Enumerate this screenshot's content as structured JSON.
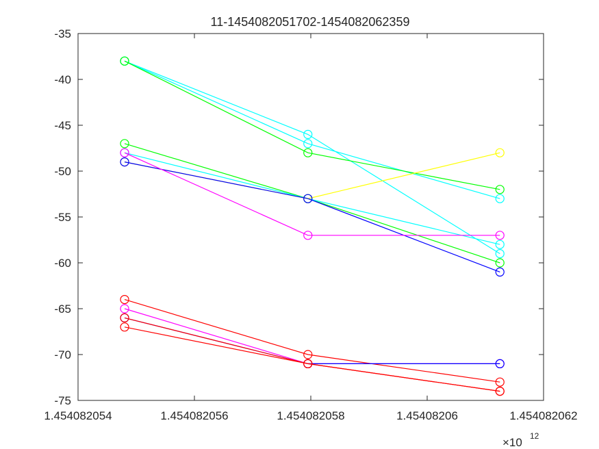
{
  "chart_data": {
    "type": "line",
    "title": "11-1454082051702-1454082062359",
    "xlabel": "",
    "ylabel": "",
    "x_exponent_label": "×10",
    "x_exponent_power": "12",
    "xlim": [
      1454082054000,
      1454082062000
    ],
    "ylim": [
      -75,
      -35
    ],
    "x_ticks": [
      1454082054000,
      1454082056000,
      1454082058000,
      1454082060000,
      1454082062000
    ],
    "x_tick_labels": [
      "1.454082054",
      "1.454082056",
      "1.454082058",
      "1.45408206",
      "1.454082062"
    ],
    "y_ticks": [
      -35,
      -40,
      -45,
      -50,
      -55,
      -60,
      -65,
      -70,
      -75
    ],
    "y_tick_labels": [
      "-35",
      "-40",
      "-45",
      "-50",
      "-55",
      "-60",
      "-65",
      "-70",
      "-75"
    ],
    "marker": "circle",
    "grid": false,
    "x": [
      1454082054800,
      1454082057950,
      1454082061250
    ],
    "series": [
      {
        "color": "#00ffff",
        "values": [
          -38,
          -46,
          -59
        ]
      },
      {
        "color": "#00ffff",
        "values": [
          -38,
          -47,
          -53
        ]
      },
      {
        "color": "#00ff00",
        "values": [
          -38,
          -48,
          -52
        ]
      },
      {
        "color": "#00ff00",
        "values": [
          -47,
          -53,
          -60
        ]
      },
      {
        "color": "#00ffff",
        "values": [
          -48,
          -53,
          -58
        ]
      },
      {
        "color": "#ffff00",
        "values": [
          -49,
          -53,
          -48
        ]
      },
      {
        "color": "#0000ff",
        "values": [
          -49,
          -53,
          -61
        ]
      },
      {
        "color": "#ff00ff",
        "values": [
          -48,
          -57,
          -57
        ]
      },
      {
        "color": "#ff0000",
        "values": [
          -64,
          -70,
          -73
        ]
      },
      {
        "color": "#ff00ff",
        "values": [
          -65,
          -71,
          -71
        ]
      },
      {
        "color": "#0000ff",
        "values": [
          -66,
          -71,
          -71
        ]
      },
      {
        "color": "#ff0000",
        "values": [
          -66,
          -71,
          -74
        ]
      },
      {
        "color": "#ff0000",
        "values": [
          -67,
          -71,
          -74
        ]
      }
    ]
  }
}
